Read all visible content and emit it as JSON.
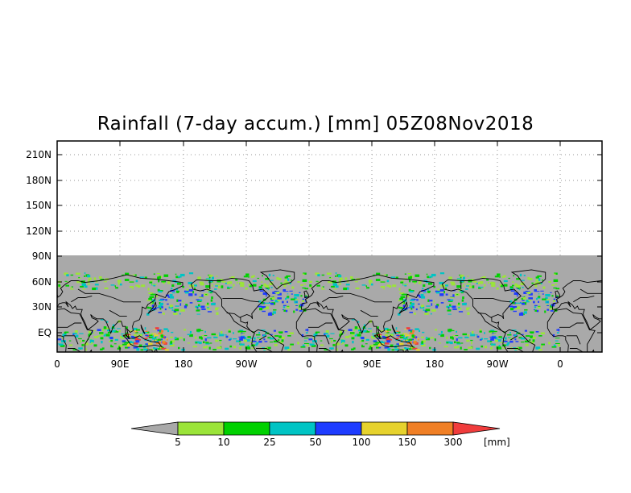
{
  "title": "Rainfall (7-day accum.) [mm] 05Z08Nov2018",
  "map": {
    "y_ticks": [
      "210N",
      "180N",
      "150N",
      "120N",
      "90N",
      "60N",
      "30N",
      "EQ"
    ],
    "x_ticks": [
      "0",
      "90E",
      "180",
      "90W",
      "0",
      "90E",
      "180",
      "90W",
      "0"
    ],
    "no_data_color": "#a9a9a9",
    "frame_color": "#000000",
    "grid": "dotted"
  },
  "colorbar": {
    "unit": "[mm]",
    "labels": [
      "5",
      "10",
      "25",
      "50",
      "100",
      "150",
      "300"
    ],
    "colors": [
      "#a9a9a9",
      "#9be439",
      "#00d100",
      "#00c4c4",
      "#1e3cff",
      "#e6d22d",
      "#f07f25",
      "#f03c3c"
    ]
  }
}
